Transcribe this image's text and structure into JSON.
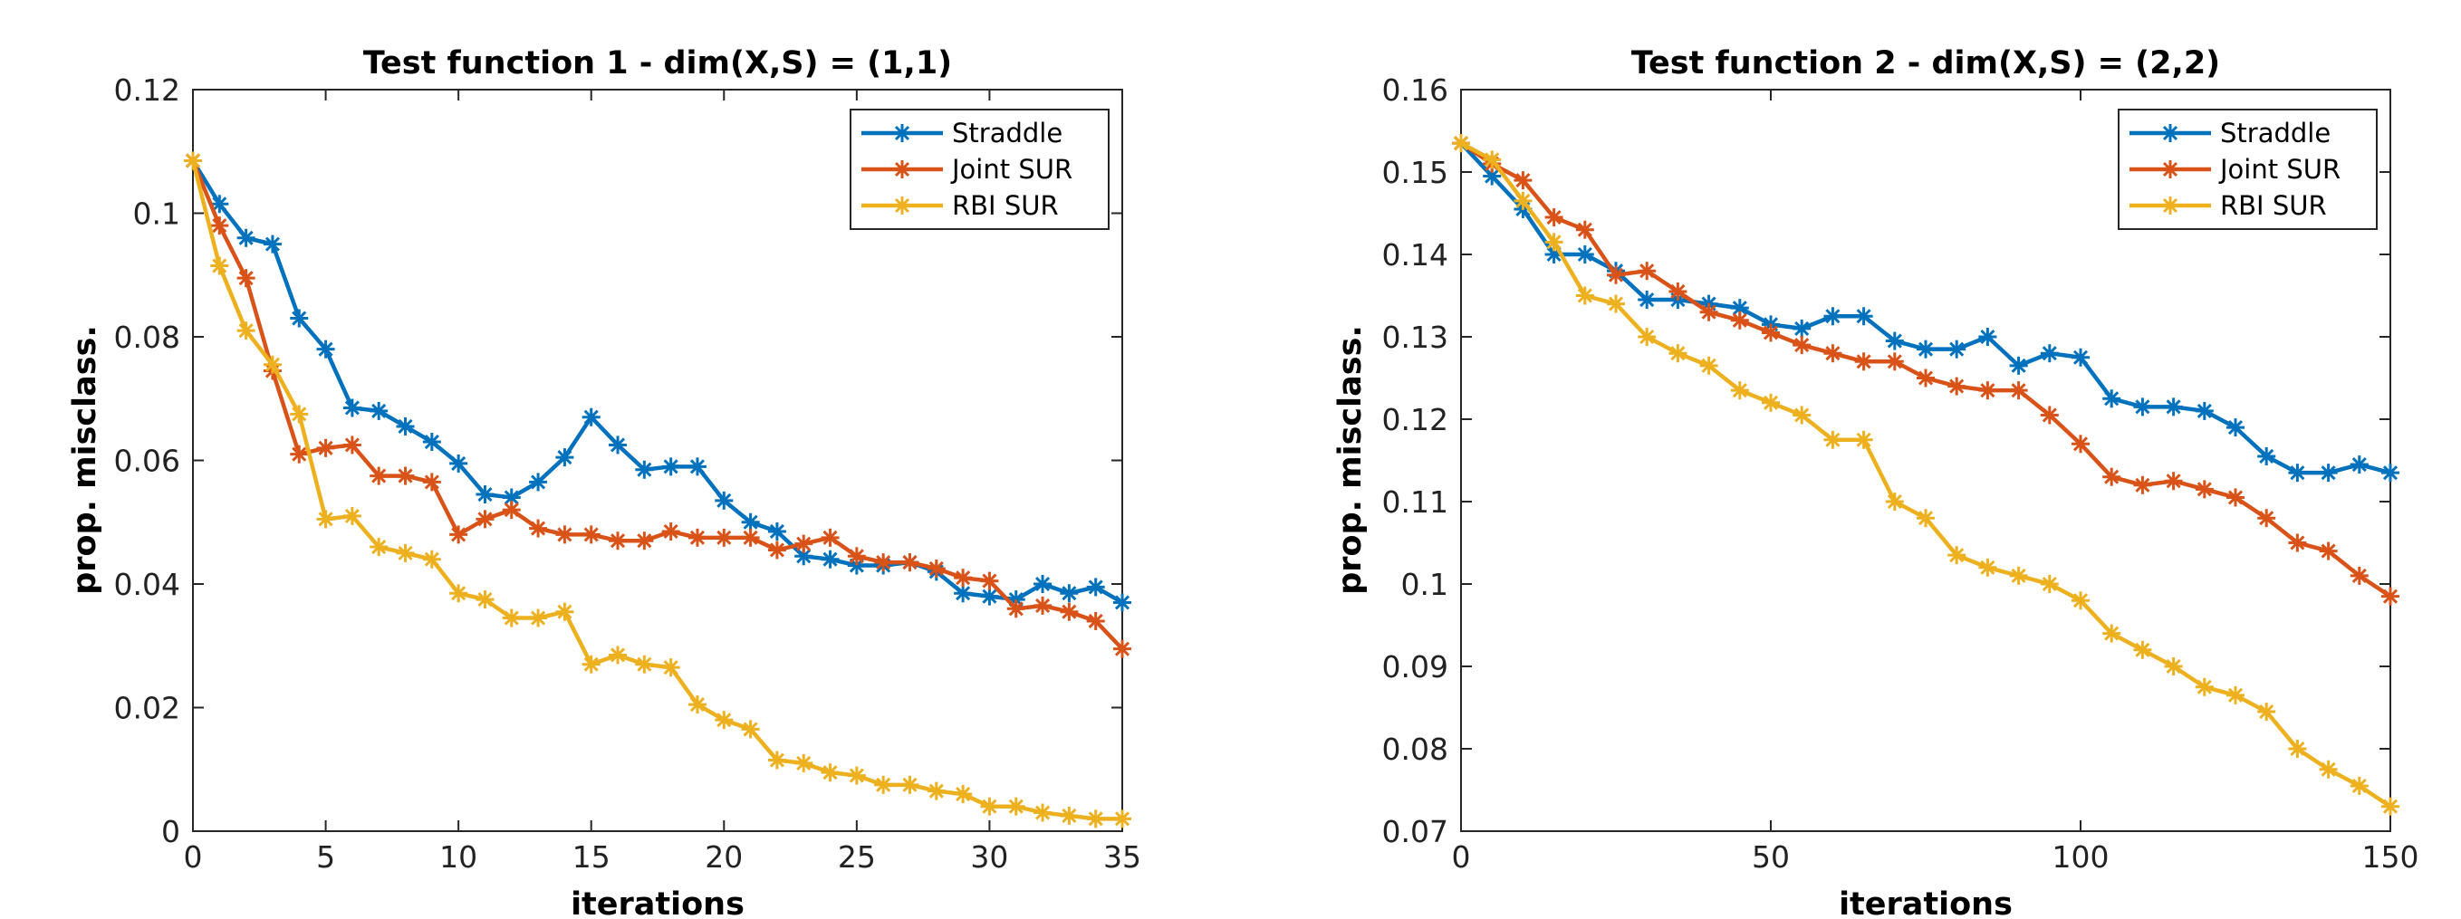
{
  "chart_data": [
    {
      "type": "line",
      "title": "Test function 1  -  dim(X,S) = (1,1)",
      "xlabel": "iterations",
      "ylabel": "prop. misclass.",
      "xlim": [
        0,
        35
      ],
      "ylim": [
        0,
        0.12
      ],
      "xticks": [
        0,
        5,
        10,
        15,
        20,
        25,
        30,
        35
      ],
      "yticks": [
        0,
        0.02,
        0.04,
        0.06,
        0.08,
        0.1,
        0.12
      ],
      "ytick_labels": [
        "0",
        "0.02",
        "0.04",
        "0.06",
        "0.08",
        "0.1",
        "0.12"
      ],
      "legend": "top-right",
      "x": [
        0,
        1,
        2,
        3,
        4,
        5,
        6,
        7,
        8,
        9,
        10,
        11,
        12,
        13,
        14,
        15,
        16,
        17,
        18,
        19,
        20,
        21,
        22,
        23,
        24,
        25,
        26,
        27,
        28,
        29,
        30,
        31,
        32,
        33,
        34,
        35
      ],
      "series": [
        {
          "name": "Straddle",
          "color": "#0072BD",
          "values": [
            0.1085,
            0.1015,
            0.096,
            0.095,
            0.083,
            0.078,
            0.0685,
            0.068,
            0.0655,
            0.063,
            0.0595,
            0.0545,
            0.054,
            0.0565,
            0.0605,
            0.067,
            0.0625,
            0.0585,
            0.059,
            0.059,
            0.0535,
            0.05,
            0.0485,
            0.0445,
            0.044,
            0.043,
            0.043,
            0.0435,
            0.042,
            0.0385,
            0.038,
            0.0375,
            0.04,
            0.0385,
            0.0395,
            0.037
          ]
        },
        {
          "name": "Joint SUR",
          "color": "#D95319",
          "values": [
            0.1085,
            0.098,
            0.0895,
            0.0745,
            0.061,
            0.062,
            0.0625,
            0.0575,
            0.0575,
            0.0565,
            0.048,
            0.0505,
            0.052,
            0.049,
            0.048,
            0.048,
            0.047,
            0.047,
            0.0485,
            0.0475,
            0.0475,
            0.0475,
            0.0455,
            0.0465,
            0.0475,
            0.0445,
            0.0435,
            0.0435,
            0.0425,
            0.041,
            0.0405,
            0.036,
            0.0365,
            0.0355,
            0.034,
            0.0295
          ]
        },
        {
          "name": "RBI SUR",
          "color": "#EDB120",
          "values": [
            0.1085,
            0.0915,
            0.081,
            0.0755,
            0.0675,
            0.0505,
            0.051,
            0.046,
            0.045,
            0.044,
            0.0385,
            0.0375,
            0.0345,
            0.0345,
            0.0355,
            0.027,
            0.0285,
            0.027,
            0.0265,
            0.0205,
            0.018,
            0.0165,
            0.0115,
            0.011,
            0.0095,
            0.009,
            0.0075,
            0.0075,
            0.0065,
            0.006,
            0.004,
            0.004,
            0.003,
            0.0025,
            0.002,
            0.002
          ]
        }
      ]
    },
    {
      "type": "line",
      "title": "Test function 2  -  dim(X,S) = (2,2)",
      "xlabel": "iterations",
      "ylabel": "prop. misclass.",
      "xlim": [
        0,
        150
      ],
      "ylim": [
        0.07,
        0.16
      ],
      "xticks": [
        0,
        50,
        100,
        150
      ],
      "yticks": [
        0.07,
        0.08,
        0.09,
        0.1,
        0.11,
        0.12,
        0.13,
        0.14,
        0.15,
        0.16
      ],
      "ytick_labels": [
        "0.07",
        "0.08",
        "0.09",
        "0.1",
        "0.11",
        "0.12",
        "0.13",
        "0.14",
        "0.15",
        "0.16"
      ],
      "legend": "top-right",
      "x": [
        0,
        5,
        10,
        15,
        20,
        25,
        30,
        35,
        40,
        45,
        50,
        55,
        60,
        65,
        70,
        75,
        80,
        85,
        90,
        95,
        100,
        105,
        110,
        115,
        120,
        125,
        130,
        135,
        140,
        145,
        150
      ],
      "series": [
        {
          "name": "Straddle",
          "color": "#0072BD",
          "values": [
            0.1535,
            0.1495,
            0.1455,
            0.14,
            0.14,
            0.138,
            0.1345,
            0.1345,
            0.134,
            0.1335,
            0.1315,
            0.131,
            0.1325,
            0.1325,
            0.1295,
            0.1285,
            0.1285,
            0.13,
            0.1265,
            0.128,
            0.1275,
            0.1225,
            0.1215,
            0.1215,
            0.121,
            0.119,
            0.1155,
            0.1135,
            0.1135,
            0.1145,
            0.1135
          ]
        },
        {
          "name": "Joint SUR",
          "color": "#D95319",
          "values": [
            0.1535,
            0.151,
            0.149,
            0.1445,
            0.143,
            0.1375,
            0.138,
            0.1355,
            0.133,
            0.132,
            0.1305,
            0.129,
            0.128,
            0.127,
            0.127,
            0.125,
            0.124,
            0.1235,
            0.1235,
            0.1205,
            0.117,
            0.113,
            0.112,
            0.1125,
            0.1115,
            0.1105,
            0.108,
            0.105,
            0.104,
            0.101,
            0.0985
          ]
        },
        {
          "name": "RBI SUR",
          "color": "#EDB120",
          "values": [
            0.1535,
            0.1515,
            0.1465,
            0.1415,
            0.135,
            0.134,
            0.13,
            0.128,
            0.1265,
            0.1235,
            0.122,
            0.1205,
            0.1175,
            0.1175,
            0.11,
            0.108,
            0.1035,
            0.102,
            0.101,
            0.1,
            0.098,
            0.094,
            0.092,
            0.09,
            0.0875,
            0.0865,
            0.0845,
            0.08,
            0.0775,
            0.0755,
            0.073
          ]
        }
      ]
    }
  ]
}
